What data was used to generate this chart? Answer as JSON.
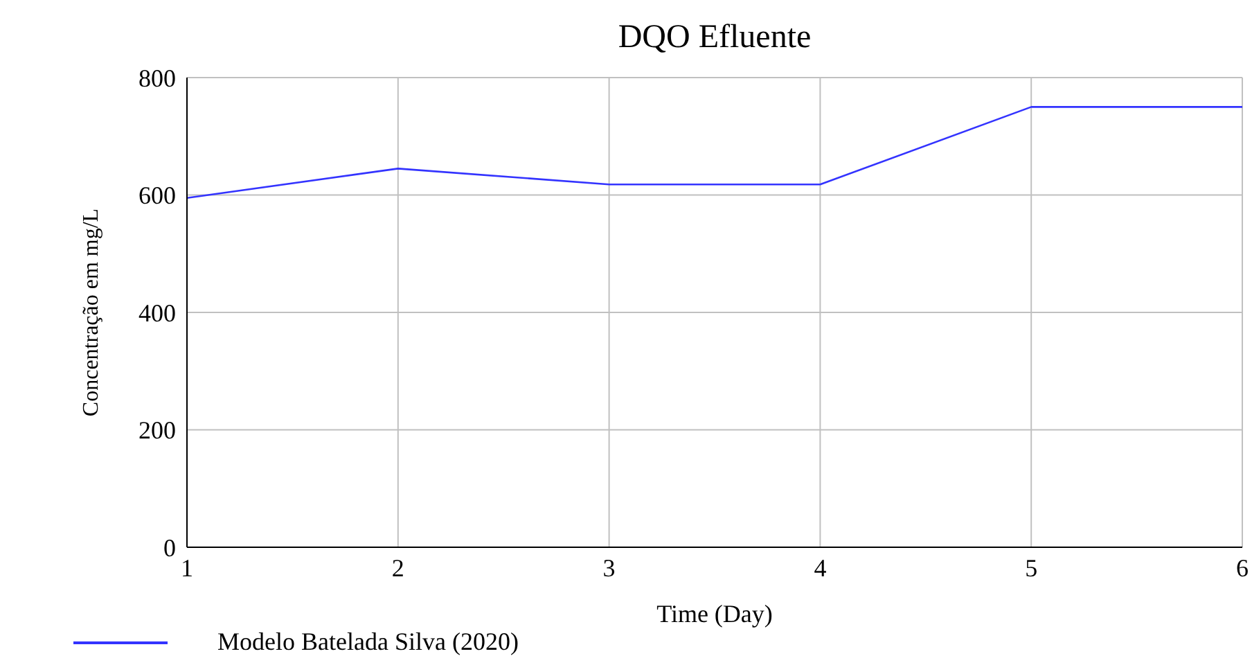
{
  "chart_data": {
    "type": "line",
    "title": "DQO Efluente",
    "xlabel": "Time (Day)",
    "ylabel": "Concentração em mg/L",
    "x": [
      1,
      2,
      3,
      4,
      5,
      6
    ],
    "series": [
      {
        "name": "Modelo Batelada Silva (2020)",
        "color": "#3333ff",
        "values": [
          595,
          645,
          618,
          618,
          750,
          750
        ]
      }
    ],
    "xlim": [
      1,
      6
    ],
    "xticks": [
      1,
      2,
      3,
      4,
      5,
      6
    ],
    "ylim": [
      0,
      800
    ],
    "yticks": [
      0,
      200,
      400,
      600,
      800
    ],
    "grid": true,
    "legend": "bottom left",
    "marker": "none",
    "line_style": "solid"
  }
}
